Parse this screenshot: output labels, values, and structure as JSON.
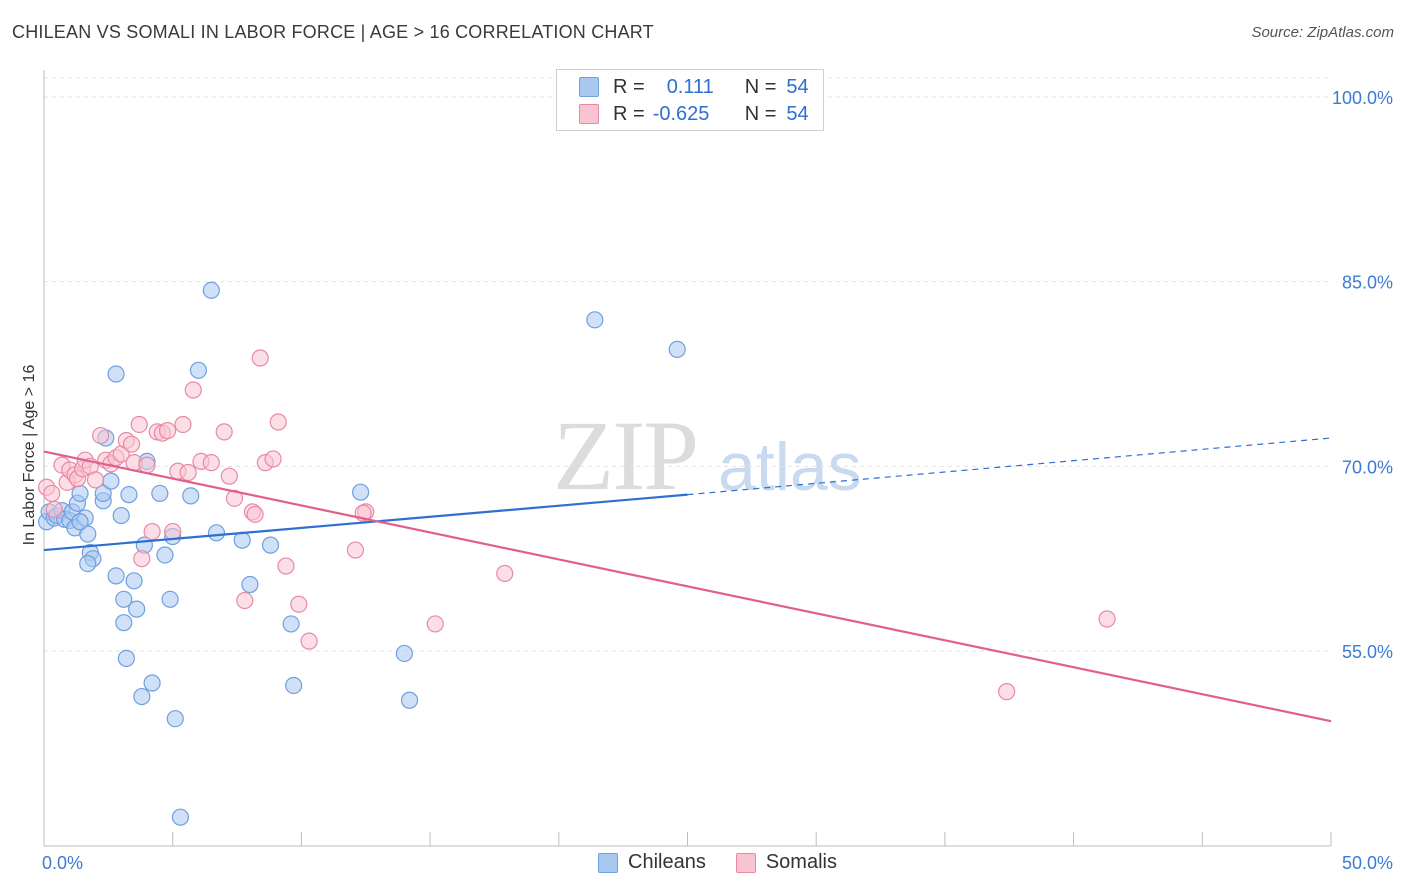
{
  "title": "CHILEAN VS SOMALI IN LABOR FORCE | AGE > 16 CORRELATION CHART",
  "source": "Source: ZipAtlas.com",
  "watermark": {
    "zip": "ZIP",
    "atlas": "atlas"
  },
  "legend": {
    "rows": [
      {
        "r_label": "R =",
        "r_value": "0.111",
        "n_label": "N =",
        "n_value": "54",
        "color": "#a9c8f0",
        "border": "#6f9fe0"
      },
      {
        "r_label": "R =",
        "r_value": "-0.625",
        "n_label": "N =",
        "n_value": "54",
        "color": "#f9c4d2",
        "border": "#e889a6"
      }
    ]
  },
  "bottom_legend": [
    {
      "label": "Chileans",
      "color": "#a9c8f0",
      "border": "#6f9fe0"
    },
    {
      "label": "Somalis",
      "color": "#f9c4d2",
      "border": "#e889a6"
    }
  ],
  "chart_data": {
    "type": "scatter",
    "ylabel": "In Labor Force | Age > 16",
    "xlabel": "",
    "xlim": [
      0,
      50
    ],
    "ylim": [
      40,
      102
    ],
    "x_tick_labels": [
      {
        "x": 0,
        "label": "0.0%"
      },
      {
        "x": 50,
        "label": "50.0%"
      }
    ],
    "y_tick_labels": [
      {
        "y": 100,
        "label": "100.0%"
      },
      {
        "y": 85,
        "label": "85.0%"
      },
      {
        "y": 70,
        "label": "70.0%"
      },
      {
        "y": 55,
        "label": "55.0%"
      }
    ],
    "grid": true,
    "series": [
      {
        "name": "Chileans",
        "color": "#6f9fe0",
        "fill": "#a9c8f0",
        "line_color": "#2f6fd0",
        "trend": {
          "x0": 0,
          "y0": 63.2,
          "x1": 25,
          "y1": 67.7,
          "dash_to_x": 50,
          "dash_to_y": 72.3
        },
        "points": [
          [
            0.1,
            65.5
          ],
          [
            0.2,
            66.3
          ],
          [
            0.4,
            65.8
          ],
          [
            0.5,
            66.0
          ],
          [
            0.7,
            66.4
          ],
          [
            0.8,
            65.7
          ],
          [
            1.0,
            65.6
          ],
          [
            1.1,
            66.3
          ],
          [
            1.2,
            65.0
          ],
          [
            1.3,
            67.0
          ],
          [
            1.4,
            67.8
          ],
          [
            1.6,
            65.8
          ],
          [
            1.7,
            64.5
          ],
          [
            1.8,
            63.0
          ],
          [
            1.9,
            62.5
          ],
          [
            1.7,
            62.1
          ],
          [
            2.3,
            67.2
          ],
          [
            2.3,
            67.8
          ],
          [
            2.6,
            68.8
          ],
          [
            2.8,
            77.5
          ],
          [
            2.8,
            61.1
          ],
          [
            3.0,
            66.0
          ],
          [
            3.1,
            59.2
          ],
          [
            3.1,
            57.3
          ],
          [
            3.2,
            54.4
          ],
          [
            3.3,
            67.7
          ],
          [
            3.5,
            60.7
          ],
          [
            3.6,
            58.4
          ],
          [
            3.8,
            51.3
          ],
          [
            3.9,
            63.6
          ],
          [
            4.0,
            70.4
          ],
          [
            4.2,
            52.4
          ],
          [
            4.5,
            67.8
          ],
          [
            4.7,
            62.8
          ],
          [
            4.9,
            59.2
          ],
          [
            5.0,
            64.3
          ],
          [
            5.1,
            49.5
          ],
          [
            5.3,
            41.5
          ],
          [
            5.7,
            67.6
          ],
          [
            6.0,
            77.8
          ],
          [
            6.5,
            84.3
          ],
          [
            6.7,
            64.6
          ],
          [
            7.7,
            64.0
          ],
          [
            8.0,
            60.4
          ],
          [
            8.8,
            63.6
          ],
          [
            9.6,
            57.2
          ],
          [
            9.7,
            52.2
          ],
          [
            12.3,
            67.9
          ],
          [
            14.0,
            54.8
          ],
          [
            14.2,
            51.0
          ],
          [
            21.4,
            81.9
          ],
          [
            24.6,
            79.5
          ],
          [
            2.4,
            72.3
          ],
          [
            1.4,
            65.5
          ]
        ]
      },
      {
        "name": "Somalis",
        "color": "#e889a6",
        "fill": "#f9c4d2",
        "line_color": "#e0608a",
        "trend": {
          "x0": 0,
          "y0": 71.2,
          "x1": 50,
          "y1": 49.3
        },
        "points": [
          [
            0.1,
            68.3
          ],
          [
            0.3,
            67.8
          ],
          [
            0.4,
            66.5
          ],
          [
            0.7,
            70.1
          ],
          [
            0.9,
            68.7
          ],
          [
            1.0,
            69.7
          ],
          [
            1.2,
            69.3
          ],
          [
            1.3,
            69.0
          ],
          [
            1.5,
            69.8
          ],
          [
            1.6,
            70.5
          ],
          [
            1.8,
            70.0
          ],
          [
            2.0,
            68.9
          ],
          [
            2.2,
            72.5
          ],
          [
            2.4,
            70.5
          ],
          [
            2.6,
            70.2
          ],
          [
            2.8,
            70.7
          ],
          [
            3.0,
            71.0
          ],
          [
            3.2,
            72.1
          ],
          [
            3.4,
            71.8
          ],
          [
            3.5,
            70.3
          ],
          [
            3.7,
            73.4
          ],
          [
            3.8,
            62.5
          ],
          [
            4.0,
            70.1
          ],
          [
            4.2,
            64.7
          ],
          [
            4.4,
            72.8
          ],
          [
            4.6,
            72.7
          ],
          [
            4.8,
            72.9
          ],
          [
            5.0,
            64.7
          ],
          [
            5.2,
            69.6
          ],
          [
            5.4,
            73.4
          ],
          [
            5.6,
            69.5
          ],
          [
            5.8,
            76.2
          ],
          [
            6.1,
            70.4
          ],
          [
            6.5,
            70.3
          ],
          [
            7.0,
            72.8
          ],
          [
            7.2,
            69.2
          ],
          [
            7.4,
            67.4
          ],
          [
            7.8,
            59.1
          ],
          [
            8.1,
            66.3
          ],
          [
            8.2,
            66.1
          ],
          [
            8.4,
            78.8
          ],
          [
            8.6,
            70.3
          ],
          [
            8.9,
            70.6
          ],
          [
            9.1,
            73.6
          ],
          [
            9.4,
            61.9
          ],
          [
            9.9,
            58.8
          ],
          [
            10.3,
            55.8
          ],
          [
            12.1,
            63.2
          ],
          [
            12.5,
            66.3
          ],
          [
            17.9,
            61.3
          ],
          [
            15.2,
            57.2
          ],
          [
            37.4,
            51.7
          ],
          [
            41.3,
            57.6
          ],
          [
            12.4,
            66.2
          ]
        ]
      }
    ]
  }
}
